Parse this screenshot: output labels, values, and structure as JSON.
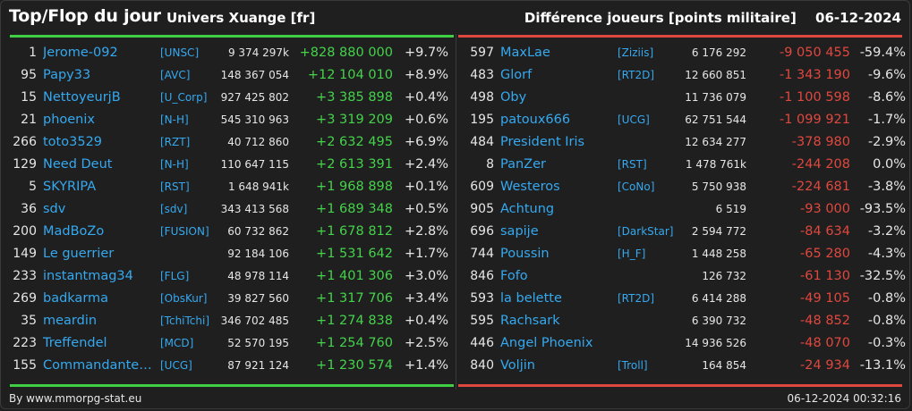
{
  "header": {
    "title": "Top/Flop du jour",
    "subtitle": "Univers Xuange [fr]",
    "metric": "Différence joueurs [points militaire]",
    "date": "06-12-2024"
  },
  "colors": {
    "top": "#3ecf45",
    "flop": "#e0483f",
    "link": "#35a9f0"
  },
  "top": [
    {
      "rank": "1",
      "name": "Jerome-092",
      "alliance": "[UNSC]",
      "points": "9 374 297k",
      "diff": "+828 880 000",
      "pct": "+9.7%"
    },
    {
      "rank": "95",
      "name": "Papy33",
      "alliance": "[AVC]",
      "points": "148 367 054",
      "diff": "+12 104 010",
      "pct": "+8.9%"
    },
    {
      "rank": "15",
      "name": "NettoyeurjB",
      "alliance": "[U_Corp]",
      "points": "927 425 802",
      "diff": "+3 385 898",
      "pct": "+0.4%"
    },
    {
      "rank": "21",
      "name": "phoenix",
      "alliance": "[N-H]",
      "points": "545 310 963",
      "diff": "+3 319 209",
      "pct": "+0.6%"
    },
    {
      "rank": "266",
      "name": "toto3529",
      "alliance": "[RZT]",
      "points": "40 712 860",
      "diff": "+2 632 495",
      "pct": "+6.9%"
    },
    {
      "rank": "129",
      "name": "Need Deut",
      "alliance": "[N-H]",
      "points": "110 647 115",
      "diff": "+2 613 391",
      "pct": "+2.4%"
    },
    {
      "rank": "5",
      "name": "SKYRIPA",
      "alliance": "[RST]",
      "points": "1 648 941k",
      "diff": "+1 968 898",
      "pct": "+0.1%"
    },
    {
      "rank": "36",
      "name": "sdv",
      "alliance": "[sdv]",
      "points": "343 413 568",
      "diff": "+1 689 348",
      "pct": "+0.5%"
    },
    {
      "rank": "200",
      "name": "MadBoZo",
      "alliance": "[FUSION]",
      "points": "60 732 862",
      "diff": "+1 678 812",
      "pct": "+2.8%"
    },
    {
      "rank": "149",
      "name": "Le guerrier",
      "alliance": "",
      "points": "92 184 106",
      "diff": "+1 531 642",
      "pct": "+1.7%"
    },
    {
      "rank": "233",
      "name": "instantmag34",
      "alliance": "[FLG]",
      "points": "48 978 114",
      "diff": "+1 401 306",
      "pct": "+3.0%"
    },
    {
      "rank": "269",
      "name": "badkarma",
      "alliance": "[ObsKur]",
      "points": "39 827 560",
      "diff": "+1 317 706",
      "pct": "+3.4%"
    },
    {
      "rank": "35",
      "name": "meardin",
      "alliance": "[TchiTchi]",
      "points": "346 702 485",
      "diff": "+1 274 838",
      "pct": "+0.4%"
    },
    {
      "rank": "223",
      "name": "Treffendel",
      "alliance": "[MCD]",
      "points": "52 570 195",
      "diff": "+1 254 760",
      "pct": "+2.5%"
    },
    {
      "rank": "155",
      "name": "Commandante ...",
      "alliance": "[UCG]",
      "points": "87 921 124",
      "diff": "+1 230 574",
      "pct": "+1.4%"
    }
  ],
  "flop": [
    {
      "rank": "597",
      "name": "MaxLae",
      "alliance": "[Ziziis]",
      "points": "6 176 292",
      "diff": "-9 050 455",
      "pct": "-59.4%"
    },
    {
      "rank": "483",
      "name": "Glorf",
      "alliance": "[RT2D]",
      "points": "12 660 851",
      "diff": "-1 343 190",
      "pct": "-9.6%"
    },
    {
      "rank": "498",
      "name": "Oby",
      "alliance": "",
      "points": "11 736 079",
      "diff": "-1 100 598",
      "pct": "-8.6%"
    },
    {
      "rank": "195",
      "name": "patoux666",
      "alliance": "[UCG]",
      "points": "62 751 544",
      "diff": "-1 099 921",
      "pct": "-1.7%"
    },
    {
      "rank": "484",
      "name": "President Iris",
      "alliance": "",
      "points": "12 634 277",
      "diff": "-378 980",
      "pct": "-2.9%"
    },
    {
      "rank": "8",
      "name": "PanZer",
      "alliance": "[RST]",
      "points": "1 478 761k",
      "diff": "-244 208",
      "pct": "0.0%"
    },
    {
      "rank": "609",
      "name": "Westeros",
      "alliance": "[CoNo]",
      "points": "5 750 938",
      "diff": "-224 681",
      "pct": "-3.8%"
    },
    {
      "rank": "905",
      "name": "Achtung",
      "alliance": "",
      "points": "6 519",
      "diff": "-93 000",
      "pct": "-93.5%"
    },
    {
      "rank": "696",
      "name": "sapije",
      "alliance": "[DarkStar]",
      "points": "2 594 772",
      "diff": "-84 634",
      "pct": "-3.2%"
    },
    {
      "rank": "744",
      "name": "Poussin",
      "alliance": "[H_F]",
      "points": "1 448 258",
      "diff": "-65 280",
      "pct": "-4.3%"
    },
    {
      "rank": "846",
      "name": "Fofo",
      "alliance": "",
      "points": "126 732",
      "diff": "-61 130",
      "pct": "-32.5%"
    },
    {
      "rank": "593",
      "name": "la belette",
      "alliance": "[RT2D]",
      "points": "6 414 288",
      "diff": "-49 105",
      "pct": "-0.8%"
    },
    {
      "rank": "595",
      "name": "Rachsark",
      "alliance": "",
      "points": "6 390 732",
      "diff": "-48 852",
      "pct": "-0.8%"
    },
    {
      "rank": "446",
      "name": "Angel Phoenix",
      "alliance": "",
      "points": "14 936 526",
      "diff": "-48 070",
      "pct": "-0.3%"
    },
    {
      "rank": "840",
      "name": "Voljin",
      "alliance": "[Troll]",
      "points": "164 854",
      "diff": "-24 934",
      "pct": "-13.1%"
    }
  ],
  "footer": {
    "credit": "By www.mmorpg-stat.eu",
    "timestamp": "06-12-2024 00:32:16"
  }
}
